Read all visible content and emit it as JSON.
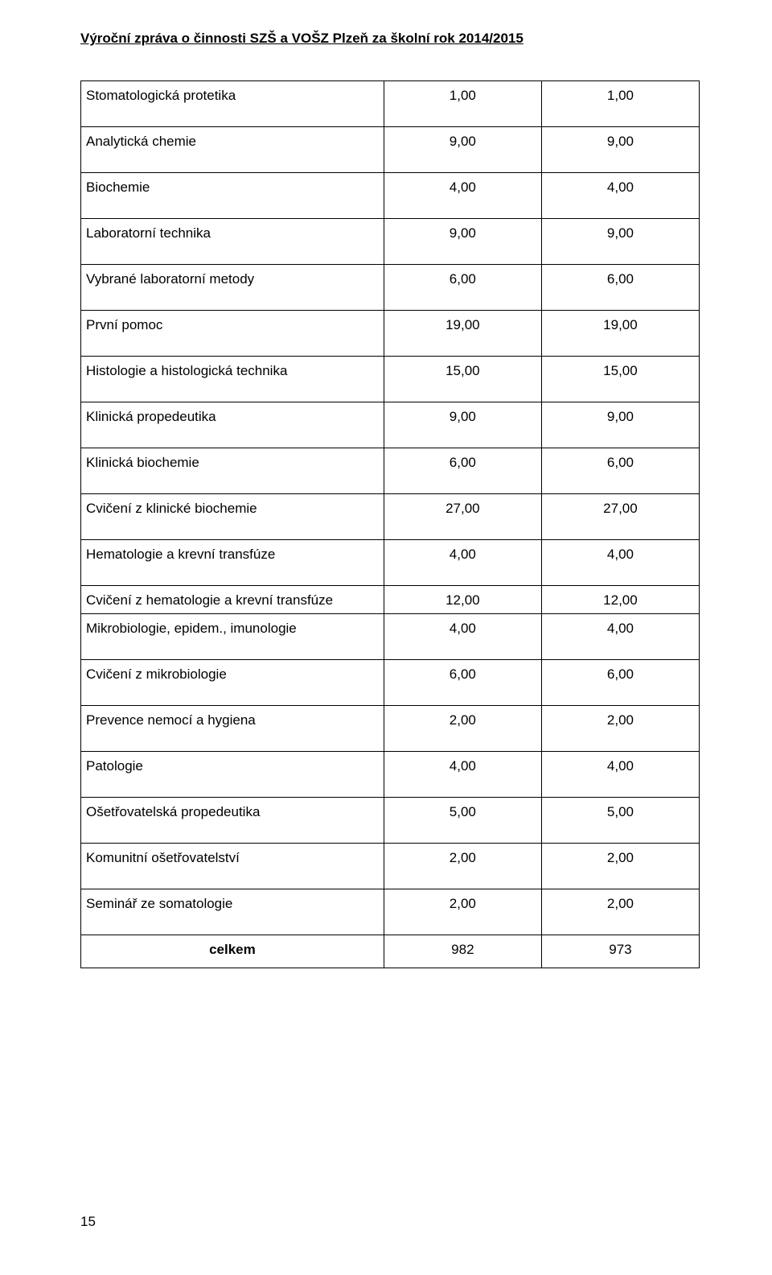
{
  "header": {
    "title": "Výroční zpráva o činnosti SZŠ a VOŠZ Plzeň za školní rok 2014/2015"
  },
  "page_number": "15",
  "table": {
    "rows": [
      {
        "label": "Stomatologická protetika",
        "v1": "1,00",
        "v2": "1,00",
        "tight": false
      },
      {
        "label": "Analytická chemie",
        "v1": "9,00",
        "v2": "9,00",
        "tight": false
      },
      {
        "label": "Biochemie",
        "v1": "4,00",
        "v2": "4,00",
        "tight": false
      },
      {
        "label": "Laboratorní technika",
        "v1": "9,00",
        "v2": "9,00",
        "tight": false
      },
      {
        "label": "Vybrané laboratorní metody",
        "v1": "6,00",
        "v2": "6,00",
        "tight": false
      },
      {
        "label": "První pomoc",
        "v1": "19,00",
        "v2": "19,00",
        "tight": false
      },
      {
        "label": "Histologie a histologická technika",
        "v1": "15,00",
        "v2": "15,00",
        "tight": false
      },
      {
        "label": "Klinická propedeutika",
        "v1": "9,00",
        "v2": "9,00",
        "tight": false
      },
      {
        "label": "Klinická biochemie",
        "v1": "6,00",
        "v2": "6,00",
        "tight": false
      },
      {
        "label": "Cvičení z klinické biochemie",
        "v1": "27,00",
        "v2": "27,00",
        "tight": false
      },
      {
        "label": "Hematologie a krevní transfúze",
        "v1": "4,00",
        "v2": "4,00",
        "tight": false
      },
      {
        "label": "Cvičení z hematologie a krevní transfúze",
        "v1": "12,00",
        "v2": "12,00",
        "tight": true
      },
      {
        "label": "Mikrobiologie, epidem., imunologie",
        "v1": "4,00",
        "v2": "4,00",
        "tight": false
      },
      {
        "label": "Cvičení z mikrobiologie",
        "v1": "6,00",
        "v2": "6,00",
        "tight": false
      },
      {
        "label": "Prevence nemocí a hygiena",
        "v1": "2,00",
        "v2": "2,00",
        "tight": false
      },
      {
        "label": "Patologie",
        "v1": "4,00",
        "v2": "4,00",
        "tight": false
      },
      {
        "label": "Ošetřovatelská propedeutika",
        "v1": "5,00",
        "v2": "5,00",
        "tight": false
      },
      {
        "label": "Komunitní ošetřovatelství",
        "v1": "2,00",
        "v2": "2,00",
        "tight": false
      },
      {
        "label": "Seminář ze somatologie",
        "v1": "2,00",
        "v2": "2,00",
        "tight": false
      }
    ],
    "total": {
      "label": "celkem",
      "v1": "982",
      "v2": "973"
    }
  }
}
